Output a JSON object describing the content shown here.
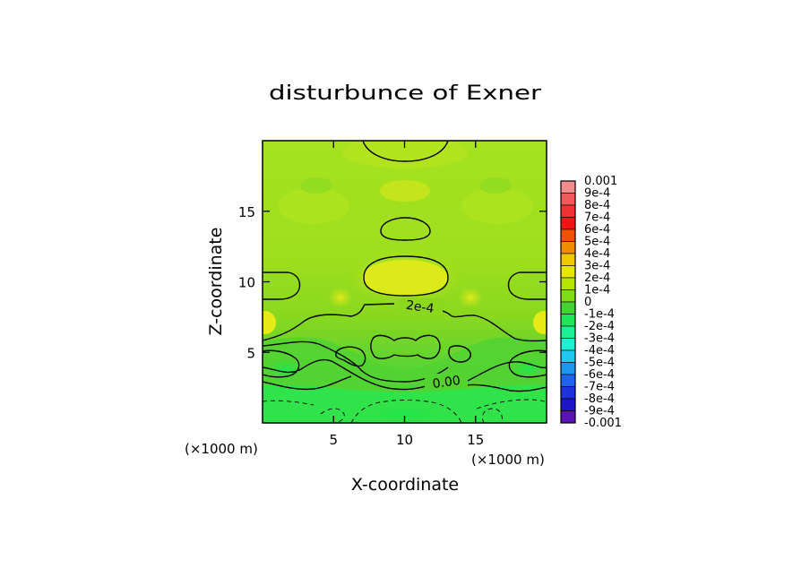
{
  "chart_data": {
    "type": "heatmap",
    "title": "disturbunce of Exner",
    "xlabel": "X-coordinate",
    "ylabel": "Z-coordinate",
    "x_unit": "(×1000 m)",
    "z_unit": "(×1000 m)",
    "xlim": [
      0,
      20
    ],
    "ylim": [
      0,
      20
    ],
    "x_ticks": [
      5,
      10,
      15
    ],
    "x_tick_labels": [
      "5",
      "10",
      "15"
    ],
    "y_ticks": [
      5,
      10,
      15
    ],
    "y_tick_labels": [
      "5",
      "10",
      "15"
    ],
    "contour_labels": [
      {
        "text": "2e-4",
        "x": 11.0,
        "z": 8.1
      },
      {
        "text": "0.00",
        "x": 13.0,
        "z": 2.7
      }
    ],
    "colorbar": {
      "labels": [
        "0.001",
        "9e-4",
        "8e-4",
        "7e-4",
        "6e-4",
        "5e-4",
        "4e-4",
        "3e-4",
        "2e-4",
        "1e-4",
        "0",
        "-1e-4",
        "-2e-4",
        "-3e-4",
        "-4e-4",
        "-5e-4",
        "-6e-4",
        "-7e-4",
        "-8e-4",
        "-9e-4",
        "-0.001"
      ],
      "colors": [
        "#f08c8c",
        "#f05a5a",
        "#f03232",
        "#f01414",
        "#f05000",
        "#f08c00",
        "#f0c800",
        "#e6e600",
        "#b4e600",
        "#82dc14",
        "#46d232",
        "#1ee65a",
        "#1ef096",
        "#1ef0d2",
        "#1ec8f0",
        "#1e96f0",
        "#1e64f0",
        "#1e32dc",
        "#1e14c8",
        "#5a14b4"
      ]
    }
  }
}
